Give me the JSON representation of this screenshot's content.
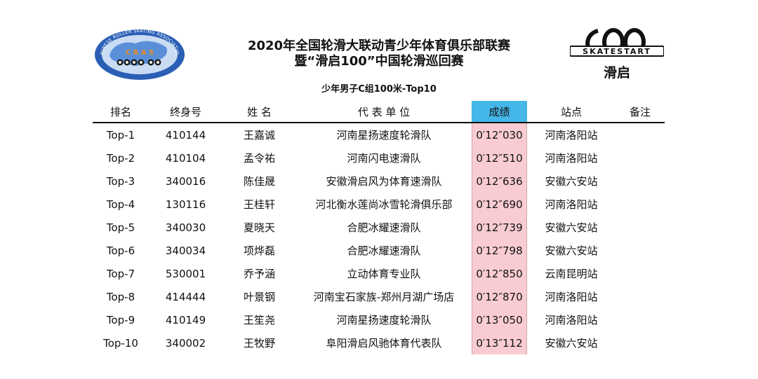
{
  "header": {
    "title_line1": "2020年全国轮滑大联动青少年体育俱乐部联赛",
    "title_line2": "暨“滑启100”中国轮滑巡回赛",
    "subtitle": "少年男子C组100米-Top10"
  },
  "logos": {
    "left": {
      "name": "cras-logo",
      "text": "CHINESE ROLLER SKATING ASSOCIATION",
      "letters": "C R A S"
    },
    "right": {
      "name": "skate-start-logo",
      "text": "SKATESTART",
      "cn": "滑启"
    }
  },
  "table": {
    "columns": [
      "排名",
      "终身号",
      "姓 名",
      "代 表 单 位",
      "成绩",
      "站点",
      "备注"
    ],
    "rows": [
      {
        "rank": "Top-1",
        "id": "410144",
        "name": "王嘉诚",
        "unit": "河南星扬速度轮滑队",
        "score": "0′12″030",
        "site": "河南洛阳站",
        "note": ""
      },
      {
        "rank": "Top-2",
        "id": "410104",
        "name": "孟令祐",
        "unit": "河南闪电速滑队",
        "score": "0′12″510",
        "site": "河南洛阳站",
        "note": ""
      },
      {
        "rank": "Top-3",
        "id": "340016",
        "name": "陈佳晟",
        "unit": "安徽滑启风为体育速滑队",
        "score": "0′12″636",
        "site": "安徽六安站",
        "note": ""
      },
      {
        "rank": "Top-4",
        "id": "130116",
        "name": "王桂轩",
        "unit": "河北衡水莲尚冰雪轮滑俱乐部",
        "score": "0′12″690",
        "site": "河南洛阳站",
        "note": ""
      },
      {
        "rank": "Top-5",
        "id": "340030",
        "name": "夏晓天",
        "unit": "合肥冰耀速滑队",
        "score": "0′12″739",
        "site": "安徽六安站",
        "note": ""
      },
      {
        "rank": "Top-6",
        "id": "340034",
        "name": "项烨磊",
        "unit": "合肥冰耀速滑队",
        "score": "0′12″798",
        "site": "安徽六安站",
        "note": ""
      },
      {
        "rank": "Top-7",
        "id": "530001",
        "name": "乔予涵",
        "unit": "立动体育专业队",
        "score": "0′12″850",
        "site": "云南昆明站",
        "note": ""
      },
      {
        "rank": "Top-8",
        "id": "414444",
        "name": "叶景钢",
        "unit": "河南宝石家族-郑州月湖广场店",
        "score": "0′12″870",
        "site": "河南洛阳站",
        "note": ""
      },
      {
        "rank": "Top-9",
        "id": "410149",
        "name": "王笙尧",
        "unit": "河南星扬速度轮滑队",
        "score": "0′13″050",
        "site": "河南洛阳站",
        "note": ""
      },
      {
        "rank": "Top-10",
        "id": "340002",
        "name": "王牧野",
        "unit": "阜阳滑启风驰体育代表队",
        "score": "0′13″112",
        "site": "安徽六安站",
        "note": ""
      }
    ]
  },
  "colors": {
    "header_highlight": "#45b6e8",
    "score_highlight": "#f8ccd2"
  }
}
